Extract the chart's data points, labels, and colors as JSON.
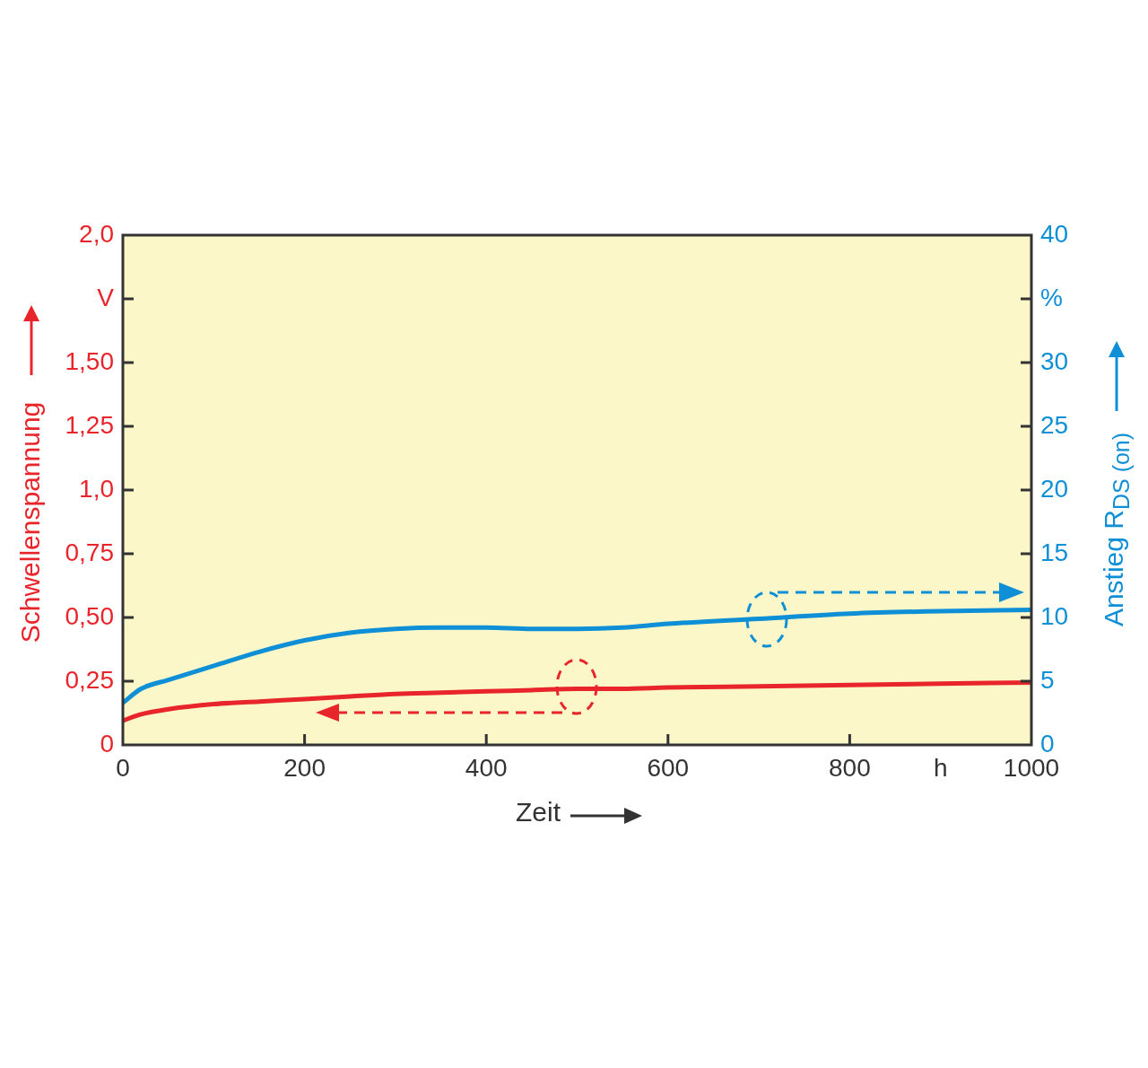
{
  "chart_data": {
    "type": "line",
    "xlabel": "Zeit",
    "ylabel": "Schwellenspannung",
    "y2label": "Anstieg R$_{DS (on)}$",
    "x": [
      0,
      20,
      50,
      100,
      150,
      200,
      250,
      300,
      350,
      400,
      450,
      500,
      550,
      600,
      700,
      800,
      900,
      1000
    ],
    "series": [
      {
        "color": "#e8252b",
        "values": [
          0.095,
          0.12,
          0.14,
          0.16,
          0.17,
          0.18,
          0.19,
          0.2,
          0.205,
          0.21,
          0.215,
          0.22,
          0.22,
          0.225,
          0.23,
          0.235,
          0.24,
          0.245
        ]
      },
      {
        "color": "#0f8fd6",
        "axis": "y2",
        "values": [
          3.3,
          4.4,
          5.1,
          6.2,
          7.3,
          8.2,
          8.8,
          9.1,
          9.2,
          9.2,
          9.1,
          9.1,
          9.2,
          9.5,
          9.9,
          10.3,
          10.5,
          10.6
        ]
      }
    ],
    "xlim": [
      0,
      1000
    ],
    "xticks": [
      0,
      200,
      400,
      600,
      800,
      {
        "value": 900,
        "label": "h"
      },
      1000
    ],
    "ylim": [
      0,
      2
    ],
    "yticks": [
      0,
      {
        "value": 0.25,
        "label": "0,25"
      },
      {
        "value": 0.5,
        "label": "0,50"
      },
      {
        "value": 0.75,
        "label": "0,75"
      },
      {
        "value": 1,
        "label": "1,0"
      },
      {
        "value": 1.25,
        "label": "1,25"
      },
      {
        "value": 1.5,
        "label": "1,50"
      },
      {
        "value": 1.75,
        "label": "V"
      },
      {
        "value": 2,
        "label": "2,0"
      }
    ],
    "y2lim": [
      0,
      40
    ],
    "y2ticks": [
      0,
      5,
      10,
      15,
      20,
      25,
      30,
      {
        "value": 35,
        "label": "%"
      },
      40
    ],
    "legend": false
  }
}
